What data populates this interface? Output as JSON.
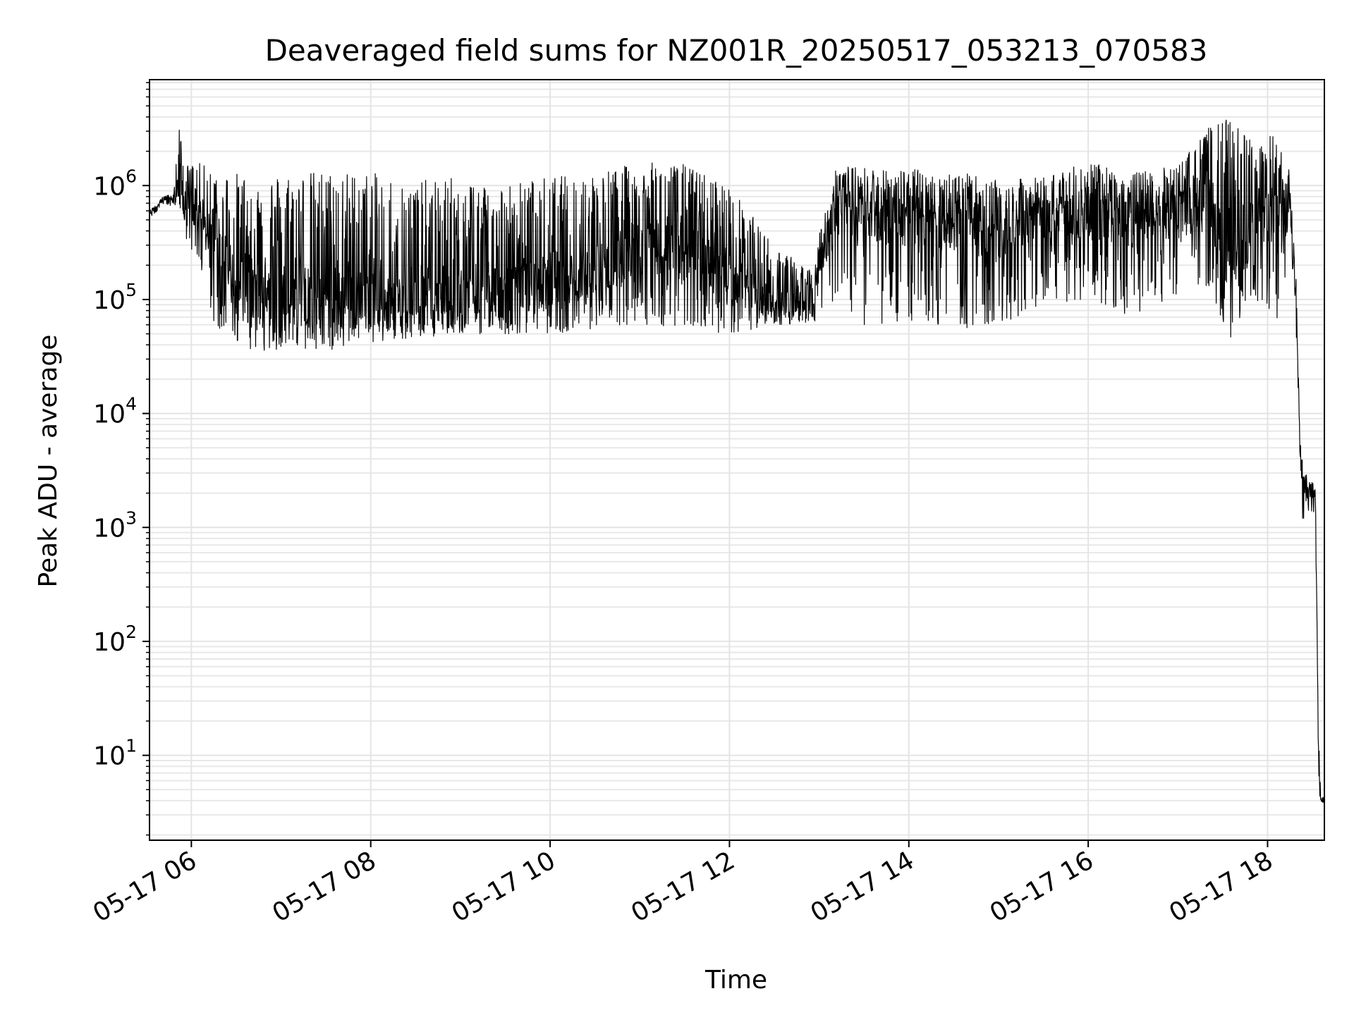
{
  "chart_data": {
    "type": "line",
    "title": "Deaveraged field sums for NZ001R_20250517_053213_070583",
    "xlabel": "Time",
    "ylabel": "Peak ADU - average",
    "yscale": "log",
    "ylim": [
      1.8,
      8500000
    ],
    "xlim": [
      "2025-05-17 05:32",
      "2025-05-17 18:38"
    ],
    "grid": true,
    "x_ticks": [
      {
        "label": "05-17 06",
        "time": "2025-05-17 06:00"
      },
      {
        "label": "05-17 08",
        "time": "2025-05-17 08:00"
      },
      {
        "label": "05-17 10",
        "time": "2025-05-17 10:00"
      },
      {
        "label": "05-17 12",
        "time": "2025-05-17 12:00"
      },
      {
        "label": "05-17 14",
        "time": "2025-05-17 14:00"
      },
      {
        "label": "05-17 16",
        "time": "2025-05-17 16:00"
      },
      {
        "label": "05-17 18",
        "time": "2025-05-17 18:00"
      }
    ],
    "y_ticks": [
      {
        "base": "10",
        "exp": "1",
        "value": 10
      },
      {
        "base": "10",
        "exp": "2",
        "value": 100
      },
      {
        "base": "10",
        "exp": "3",
        "value": 1000
      },
      {
        "base": "10",
        "exp": "4",
        "value": 10000
      },
      {
        "base": "10",
        "exp": "5",
        "value": 100000
      },
      {
        "base": "10",
        "exp": "6",
        "value": 1000000
      }
    ],
    "series": [
      {
        "color": "#000000",
        "x": [
          "2025-05-17 05:32",
          "2025-05-17 05:40",
          "2025-05-17 05:48",
          "2025-05-17 05:52",
          "2025-05-17 05:56",
          "2025-05-17 06:04",
          "2025-05-17 06:15",
          "2025-05-17 06:30",
          "2025-05-17 06:45",
          "2025-05-17 07:00",
          "2025-05-17 07:30",
          "2025-05-17 08:00",
          "2025-05-17 08:30",
          "2025-05-17 09:00",
          "2025-05-17 09:30",
          "2025-05-17 10:00",
          "2025-05-17 10:30",
          "2025-05-17 11:00",
          "2025-05-17 11:30",
          "2025-05-17 12:00",
          "2025-05-17 12:30",
          "2025-05-17 12:55",
          "2025-05-17 13:10",
          "2025-05-17 13:30",
          "2025-05-17 14:00",
          "2025-05-17 14:30",
          "2025-05-17 15:00",
          "2025-05-17 15:30",
          "2025-05-17 16:00",
          "2025-05-17 16:30",
          "2025-05-17 17:00",
          "2025-05-17 17:20",
          "2025-05-17 17:35",
          "2025-05-17 17:50",
          "2025-05-17 18:05",
          "2025-05-17 18:15",
          "2025-05-17 18:19",
          "2025-05-17 18:22",
          "2025-05-17 18:24",
          "2025-05-17 18:27",
          "2025-05-17 18:30",
          "2025-05-17 18:32",
          "2025-05-17 18:34",
          "2025-05-17 18:36",
          "2025-05-17 18:38"
        ],
        "y_high": [
          600000,
          800000,
          850000,
          3500000,
          1500000,
          1600000,
          1400000,
          1300000,
          1200000,
          1300000,
          1350000,
          1300000,
          1100000,
          1200000,
          1050000,
          1200000,
          1300000,
          1600000,
          1550000,
          1000000,
          300000,
          180000,
          1500000,
          1450000,
          1400000,
          1350000,
          1100000,
          1200000,
          1600000,
          1300000,
          1500000,
          3200000,
          4000000,
          2500000,
          2800000,
          1300000,
          200000,
          7000,
          4000,
          2500,
          2500,
          2500,
          20,
          4.5,
          4.5
        ],
        "y_low": [
          450000,
          700000,
          650000,
          700000,
          350000,
          200000,
          60000,
          40000,
          35000,
          35000,
          35000,
          40000,
          45000,
          50000,
          50000,
          50000,
          55000,
          60000,
          55000,
          50000,
          60000,
          60000,
          80000,
          60000,
          60000,
          55000,
          60000,
          90000,
          100000,
          70000,
          100000,
          130000,
          45000,
          100000,
          50000,
          250000,
          60000,
          2000,
          900,
          1300,
          1300,
          1300,
          4,
          3.8,
          3.8
        ],
        "y_typical": [
          550000,
          750000,
          750000,
          900000,
          700000,
          500000,
          300000,
          150000,
          120000,
          100000,
          110000,
          100000,
          90000,
          100000,
          110000,
          150000,
          180000,
          300000,
          250000,
          150000,
          90000,
          90000,
          600000,
          550000,
          500000,
          450000,
          400000,
          500000,
          550000,
          450000,
          550000,
          700000,
          300000,
          400000,
          600000,
          500000,
          100000,
          3500,
          2500,
          2000,
          2000,
          1800,
          8,
          4,
          4
        ]
      }
    ]
  }
}
